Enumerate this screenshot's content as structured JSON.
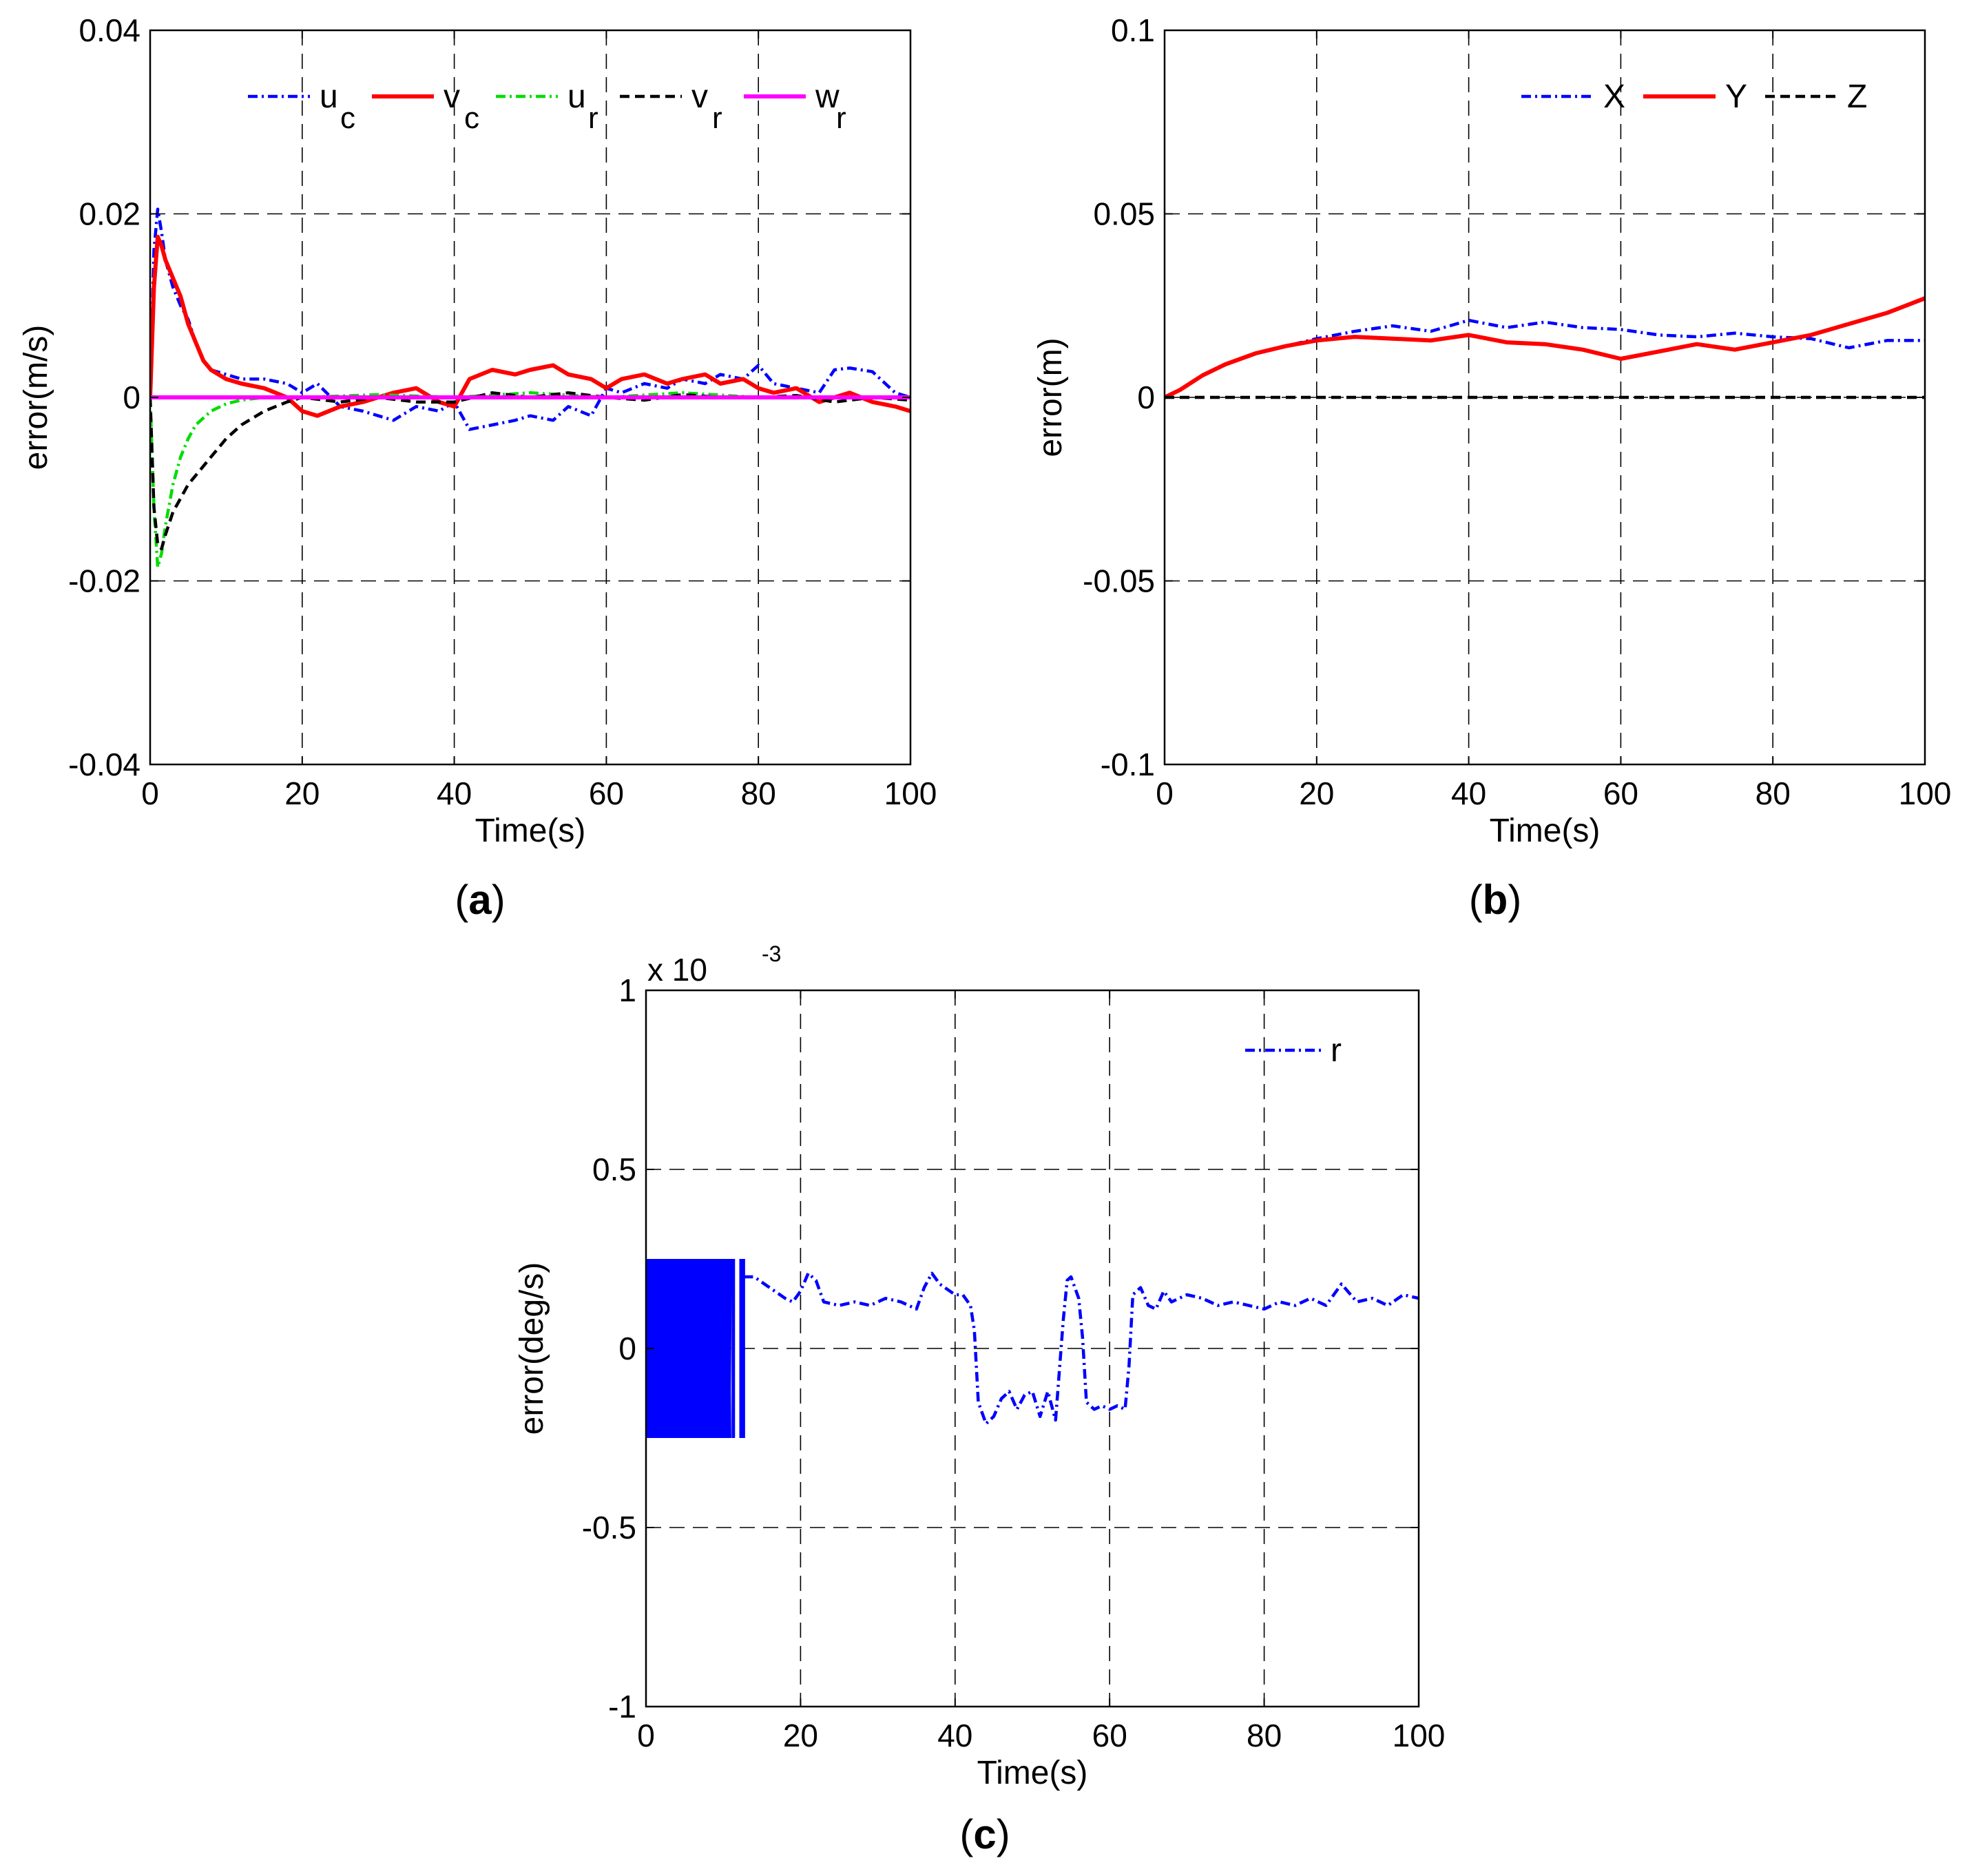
{
  "chart_data": [
    {
      "panel": "a",
      "type": "line",
      "caption_letter": "a",
      "xlabel": "Time(s)",
      "ylabel": "error(m/s)",
      "xlim": [
        0,
        100
      ],
      "ylim": [
        -0.04,
        0.04
      ],
      "xticks": [
        0,
        20,
        40,
        60,
        80,
        100
      ],
      "xtick_labels": [
        "0",
        "20",
        "40",
        "60",
        "80",
        "100"
      ],
      "yticks": [
        -0.04,
        -0.02,
        0,
        0.02,
        0.04
      ],
      "ytick_labels": [
        "-0.04",
        "-0.02",
        "0",
        "0.02",
        "0.04"
      ],
      "grid": true,
      "legend_placement": "top-right",
      "series": [
        {
          "name": "u",
          "subscript": "c",
          "color": "#0000ff",
          "style": "dashdot",
          "x": [
            0,
            0.5,
            1,
            1.5,
            2,
            3,
            4,
            5,
            6,
            7,
            8,
            10,
            12,
            15,
            18,
            20,
            22,
            25,
            28,
            30,
            32,
            35,
            38,
            40,
            42,
            45,
            48,
            50,
            53,
            55,
            58,
            60,
            62,
            65,
            68,
            70,
            73,
            75,
            78,
            80,
            82,
            85,
            88,
            90,
            92,
            95,
            98,
            100
          ],
          "y": [
            0,
            0.016,
            0.0205,
            0.018,
            0.015,
            0.012,
            0.01,
            0.0085,
            0.006,
            0.004,
            0.003,
            0.0025,
            0.002,
            0.002,
            0.0015,
            0.0005,
            0.0015,
            -0.001,
            -0.0015,
            -0.002,
            -0.0025,
            -0.001,
            -0.0015,
            -0.0005,
            -0.0035,
            -0.003,
            -0.0025,
            -0.002,
            -0.0025,
            -0.001,
            -0.002,
            0.001,
            0.0005,
            0.0015,
            0.001,
            0.002,
            0.0015,
            0.0025,
            0.002,
            0.0035,
            0.0015,
            0.001,
            0.0005,
            0.003,
            0.0032,
            0.0028,
            0.0005,
            0
          ]
        },
        {
          "name": "v",
          "subscript": "c",
          "color": "#ff0000",
          "style": "solid",
          "x": [
            0,
            0.5,
            1,
            1.5,
            2,
            3,
            4,
            5,
            6,
            7,
            8,
            10,
            12,
            15,
            18,
            20,
            22,
            25,
            28,
            30,
            32,
            35,
            38,
            40,
            42,
            45,
            48,
            50,
            53,
            55,
            58,
            60,
            62,
            65,
            68,
            70,
            73,
            75,
            78,
            80,
            82,
            85,
            88,
            90,
            92,
            95,
            98,
            100
          ],
          "y": [
            0,
            0.012,
            0.0175,
            0.0165,
            0.015,
            0.013,
            0.011,
            0.008,
            0.006,
            0.004,
            0.003,
            0.002,
            0.0015,
            0.001,
            0,
            -0.0015,
            -0.002,
            -0.001,
            -0.0005,
            0,
            0.0005,
            0.001,
            -0.0005,
            -0.001,
            0.002,
            0.003,
            0.0025,
            0.003,
            0.0035,
            0.0025,
            0.002,
            0.001,
            0.002,
            0.0025,
            0.0015,
            0.002,
            0.0025,
            0.0015,
            0.002,
            0.001,
            0.0005,
            0.001,
            -0.0005,
            0,
            0.0005,
            -0.0005,
            -0.001,
            -0.0015
          ]
        },
        {
          "name": "u",
          "subscript": "r",
          "color": "#00dd00",
          "style": "dashdot",
          "x": [
            0,
            0.5,
            1,
            1.5,
            2,
            3,
            4,
            5,
            6,
            8,
            10,
            12,
            15,
            20,
            30,
            40,
            50,
            60,
            70,
            80,
            90,
            100
          ],
          "y": [
            0,
            -0.012,
            -0.0185,
            -0.017,
            -0.014,
            -0.0095,
            -0.0065,
            -0.0045,
            -0.003,
            -0.0015,
            -0.0007,
            -0.0003,
            0,
            0,
            0.0003,
            0,
            0.0005,
            0,
            0.0005,
            0,
            0,
            0
          ]
        },
        {
          "name": "v",
          "subscript": "r",
          "color": "#000000",
          "style": "dashed",
          "x": [
            0,
            0.5,
            1,
            1.5,
            2,
            3,
            4,
            5,
            6,
            8,
            10,
            12,
            15,
            18,
            20,
            25,
            30,
            35,
            40,
            45,
            50,
            55,
            60,
            65,
            70,
            75,
            80,
            85,
            90,
            95,
            100
          ],
          "y": [
            0,
            -0.012,
            -0.016,
            -0.0165,
            -0.015,
            -0.0125,
            -0.011,
            -0.0095,
            -0.0085,
            -0.0065,
            -0.0045,
            -0.003,
            -0.0015,
            -0.0005,
            0,
            -0.0005,
            0,
            -0.0005,
            -0.0005,
            0.0005,
            0,
            0.0005,
            0,
            -0.0003,
            0.0003,
            0,
            0,
            0.0002,
            -0.0005,
            0,
            -0.0003
          ]
        },
        {
          "name": "w",
          "subscript": "r",
          "color": "#ff00ff",
          "style": "solid",
          "x": [
            0,
            100
          ],
          "y": [
            0,
            0
          ]
        }
      ]
    },
    {
      "panel": "b",
      "type": "line",
      "caption_letter": "b",
      "xlabel": "Time(s)",
      "ylabel": "error(m)",
      "xlim": [
        0,
        100
      ],
      "ylim": [
        -0.1,
        0.1
      ],
      "xticks": [
        0,
        20,
        40,
        60,
        80,
        100
      ],
      "xtick_labels": [
        "0",
        "20",
        "40",
        "60",
        "80",
        "100"
      ],
      "yticks": [
        -0.1,
        -0.05,
        0,
        0.05,
        0.1
      ],
      "ytick_labels": [
        "-0.1",
        "-0.05",
        "0",
        "0.05",
        "0.1"
      ],
      "grid": true,
      "legend_placement": "top-right",
      "series": [
        {
          "name": "X",
          "color": "#0000ff",
          "style": "dashdot",
          "x": [
            0,
            2,
            5,
            8,
            12,
            16,
            20,
            25,
            30,
            35,
            40,
            45,
            50,
            55,
            60,
            65,
            70,
            75,
            80,
            85,
            90,
            95,
            100
          ],
          "y": [
            0,
            0.002,
            0.006,
            0.009,
            0.012,
            0.014,
            0.016,
            0.018,
            0.0195,
            0.018,
            0.021,
            0.019,
            0.0205,
            0.019,
            0.0185,
            0.017,
            0.0165,
            0.0175,
            0.0165,
            0.016,
            0.0135,
            0.0155,
            0.0155
          ]
        },
        {
          "name": "Y",
          "color": "#ff0000",
          "style": "solid",
          "x": [
            0,
            2,
            5,
            8,
            12,
            16,
            20,
            25,
            30,
            35,
            40,
            45,
            50,
            55,
            60,
            65,
            70,
            75,
            80,
            85,
            90,
            95,
            100
          ],
          "y": [
            0,
            0.002,
            0.006,
            0.009,
            0.012,
            0.014,
            0.0155,
            0.0165,
            0.016,
            0.0155,
            0.017,
            0.015,
            0.0145,
            0.013,
            0.0105,
            0.0125,
            0.0145,
            0.013,
            0.015,
            0.017,
            0.02,
            0.023,
            0.027
          ]
        },
        {
          "name": "Z",
          "color": "#000000",
          "style": "dashed",
          "x": [
            0,
            100
          ],
          "y": [
            0,
            0
          ]
        }
      ]
    },
    {
      "panel": "c",
      "type": "line",
      "caption_letter": "c",
      "xlabel": "Time(s)",
      "ylabel": "error(deg/s)",
      "y_multiplier": "x 10",
      "y_multiplier_exponent": "-3",
      "xlim": [
        0,
        100
      ],
      "ylim": [
        -1,
        1
      ],
      "xticks": [
        0,
        20,
        40,
        60,
        80,
        100
      ],
      "xtick_labels": [
        "0",
        "20",
        "40",
        "60",
        "80",
        "100"
      ],
      "yticks": [
        -1,
        -0.5,
        0,
        0.5,
        1
      ],
      "ytick_labels": [
        "-1",
        "-0.5",
        "0",
        "0.5",
        "1"
      ],
      "grid": true,
      "legend_placement": "top-right",
      "oscillation_band": {
        "x_start": 0,
        "x_end": 10.8,
        "y_min": -0.25,
        "y_max": 0.25,
        "extra_spikes_x": [
          11.3,
          12.3,
          12.6
        ]
      },
      "series": [
        {
          "name": "r",
          "color": "#0000ff",
          "style": "dashdot",
          "x": [
            12.6,
            14,
            16,
            18,
            19,
            20,
            21,
            22,
            23,
            25,
            27,
            29,
            31,
            33,
            35,
            36,
            37,
            38,
            40,
            41,
            42,
            42.5,
            43,
            44,
            45,
            46,
            47,
            48,
            49,
            50,
            51,
            52,
            53,
            54,
            54.5,
            55,
            56,
            56.5,
            57,
            58,
            59,
            60,
            61,
            62,
            62.5,
            63,
            64,
            65,
            66,
            67,
            68,
            70,
            72,
            74,
            76,
            78,
            80,
            82,
            84,
            86,
            88,
            90,
            92,
            94,
            96,
            98,
            100
          ],
          "y": [
            0.2,
            0.2,
            0.17,
            0.14,
            0.13,
            0.16,
            0.21,
            0.19,
            0.13,
            0.12,
            0.13,
            0.12,
            0.14,
            0.13,
            0.11,
            0.17,
            0.21,
            0.18,
            0.15,
            0.15,
            0.12,
            0.05,
            -0.15,
            -0.21,
            -0.19,
            -0.14,
            -0.12,
            -0.17,
            -0.13,
            -0.12,
            -0.19,
            -0.12,
            -0.2,
            0.08,
            0.19,
            0.2,
            0.14,
            0.03,
            -0.15,
            -0.17,
            -0.16,
            -0.17,
            -0.16,
            -0.17,
            -0.05,
            0.15,
            0.17,
            0.12,
            0.11,
            0.16,
            0.13,
            0.15,
            0.14,
            0.12,
            0.13,
            0.12,
            0.11,
            0.13,
            0.12,
            0.14,
            0.12,
            0.18,
            0.13,
            0.14,
            0.12,
            0.15,
            0.14
          ]
        }
      ]
    }
  ]
}
